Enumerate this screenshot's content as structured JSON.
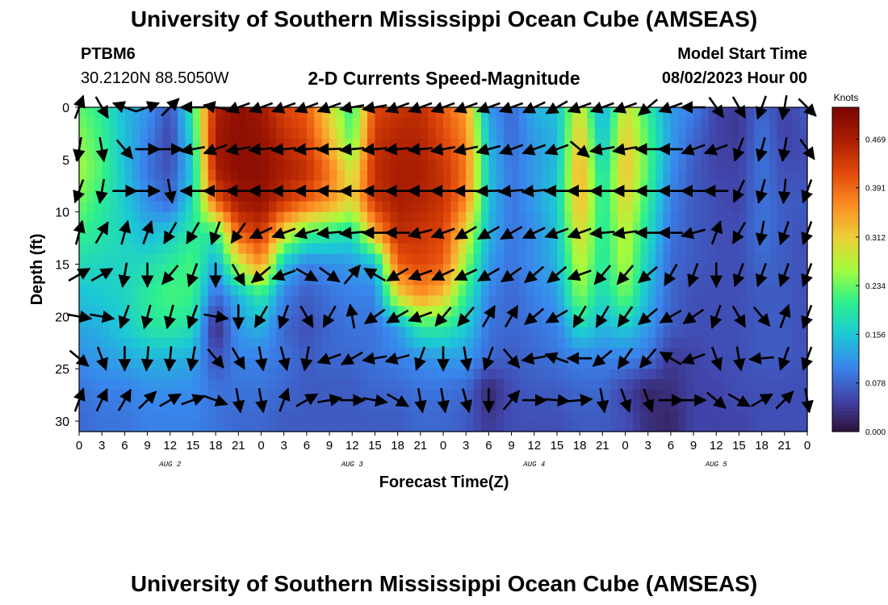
{
  "header": {
    "title": "University of Southern Mississippi Ocean Cube (AMSEAS)",
    "station": "PTBM6",
    "coords": "30.2120N  88.5050W",
    "subtitle": "2-D Currents Speed-Magnitude",
    "model_start_label": "Model Start Time",
    "model_start_value": "08/02/2023 Hour 00"
  },
  "footer": {
    "title": "University of Southern Mississippi Ocean Cube (AMSEAS)"
  },
  "chart_data": {
    "type": "heatmap",
    "title": "2-D Currents Speed-Magnitude",
    "xlabel": "Forecast Time(Z)",
    "ylabel": "Depth (ft)",
    "x_ticks": [
      "0",
      "3",
      "6",
      "9",
      "12",
      "15",
      "18",
      "21",
      "0",
      "3",
      "6",
      "9",
      "12",
      "15",
      "18",
      "21",
      "0",
      "3",
      "6",
      "9",
      "12",
      "15",
      "18",
      "21",
      "0",
      "3",
      "6",
      "9",
      "12",
      "15",
      "18",
      "21",
      "0"
    ],
    "day_labels": [
      "AUG 2",
      "AUG 3",
      "AUG 4",
      "AUG 5"
    ],
    "y_ticks": [
      0,
      5,
      10,
      15,
      20,
      25,
      30
    ],
    "ylim": [
      0,
      31
    ],
    "x_hours": [
      0,
      96
    ],
    "colorbar": {
      "title": "Knots",
      "ticks": [
        "0.000",
        "0.078",
        "0.156",
        "0.234",
        "0.312",
        "0.391",
        "0.469"
      ],
      "range": [
        0,
        0.52
      ]
    },
    "hours": [
      0,
      3,
      6,
      9,
      12,
      15,
      18,
      21,
      24,
      27,
      30,
      33,
      36,
      39,
      42,
      45,
      48,
      51,
      54,
      57,
      60,
      63,
      66,
      69,
      72,
      75,
      78,
      81,
      84,
      87,
      90,
      93,
      96
    ],
    "depths": [
      0,
      3,
      6,
      9,
      12,
      15,
      18,
      21,
      24,
      27,
      30
    ],
    "speed": [
      [
        0.23,
        0.2,
        0.14,
        0.12,
        0.06,
        0.2,
        0.46,
        0.5,
        0.48,
        0.42,
        0.4,
        0.3,
        0.2,
        0.42,
        0.44,
        0.45,
        0.4,
        0.35,
        0.12,
        0.08,
        0.14,
        0.15,
        0.3,
        0.12,
        0.3,
        0.2,
        0.12,
        0.1,
        0.05,
        0.04,
        0.08,
        0.05,
        0.07
      ],
      [
        0.25,
        0.21,
        0.15,
        0.1,
        0.05,
        0.18,
        0.48,
        0.5,
        0.49,
        0.45,
        0.42,
        0.33,
        0.22,
        0.44,
        0.46,
        0.46,
        0.42,
        0.37,
        0.14,
        0.08,
        0.12,
        0.14,
        0.33,
        0.14,
        0.32,
        0.22,
        0.12,
        0.08,
        0.05,
        0.04,
        0.09,
        0.05,
        0.06
      ],
      [
        0.26,
        0.22,
        0.15,
        0.09,
        0.06,
        0.16,
        0.47,
        0.5,
        0.5,
        0.47,
        0.45,
        0.38,
        0.28,
        0.45,
        0.47,
        0.47,
        0.44,
        0.38,
        0.15,
        0.09,
        0.12,
        0.15,
        0.35,
        0.17,
        0.33,
        0.22,
        0.11,
        0.07,
        0.05,
        0.05,
        0.09,
        0.06,
        0.06
      ],
      [
        0.24,
        0.2,
        0.16,
        0.11,
        0.08,
        0.18,
        0.4,
        0.48,
        0.49,
        0.44,
        0.4,
        0.36,
        0.3,
        0.44,
        0.47,
        0.46,
        0.44,
        0.37,
        0.15,
        0.09,
        0.12,
        0.16,
        0.34,
        0.19,
        0.31,
        0.2,
        0.1,
        0.07,
        0.06,
        0.05,
        0.09,
        0.07,
        0.07
      ],
      [
        0.21,
        0.19,
        0.17,
        0.14,
        0.16,
        0.2,
        0.2,
        0.4,
        0.44,
        0.3,
        0.22,
        0.2,
        0.18,
        0.34,
        0.45,
        0.44,
        0.42,
        0.3,
        0.14,
        0.09,
        0.11,
        0.15,
        0.31,
        0.19,
        0.28,
        0.18,
        0.09,
        0.07,
        0.06,
        0.06,
        0.09,
        0.07,
        0.06
      ],
      [
        0.18,
        0.17,
        0.17,
        0.18,
        0.2,
        0.22,
        0.13,
        0.28,
        0.36,
        0.15,
        0.1,
        0.11,
        0.12,
        0.14,
        0.4,
        0.42,
        0.4,
        0.25,
        0.12,
        0.09,
        0.11,
        0.14,
        0.28,
        0.19,
        0.27,
        0.16,
        0.08,
        0.07,
        0.06,
        0.06,
        0.08,
        0.07,
        0.06
      ],
      [
        0.15,
        0.16,
        0.17,
        0.2,
        0.22,
        0.21,
        0.08,
        0.14,
        0.2,
        0.1,
        0.07,
        0.09,
        0.1,
        0.1,
        0.3,
        0.36,
        0.32,
        0.2,
        0.1,
        0.08,
        0.1,
        0.12,
        0.25,
        0.17,
        0.24,
        0.14,
        0.08,
        0.06,
        0.06,
        0.06,
        0.07,
        0.07,
        0.06
      ],
      [
        0.13,
        0.14,
        0.16,
        0.19,
        0.2,
        0.18,
        0.02,
        0.12,
        0.14,
        0.08,
        0.06,
        0.08,
        0.09,
        0.09,
        0.12,
        0.2,
        0.2,
        0.16,
        0.09,
        0.08,
        0.09,
        0.1,
        0.18,
        0.14,
        0.16,
        0.12,
        0.07,
        0.06,
        0.06,
        0.06,
        0.07,
        0.07,
        0.06
      ],
      [
        0.11,
        0.12,
        0.13,
        0.14,
        0.14,
        0.13,
        0.06,
        0.1,
        0.1,
        0.09,
        0.07,
        0.08,
        0.08,
        0.09,
        0.1,
        0.11,
        0.12,
        0.12,
        0.08,
        0.07,
        0.08,
        0.09,
        0.1,
        0.1,
        0.1,
        0.09,
        0.04,
        0.05,
        0.06,
        0.06,
        0.07,
        0.07,
        0.06
      ],
      [
        0.09,
        0.1,
        0.1,
        0.11,
        0.11,
        0.11,
        0.09,
        0.09,
        0.09,
        0.08,
        0.07,
        0.07,
        0.07,
        0.08,
        0.08,
        0.09,
        0.09,
        0.08,
        0.02,
        0.06,
        0.07,
        0.07,
        0.08,
        0.08,
        0.05,
        0.02,
        0.03,
        0.05,
        0.05,
        0.06,
        0.06,
        0.06,
        0.06
      ],
      [
        0.08,
        0.09,
        0.09,
        0.1,
        0.1,
        0.1,
        0.09,
        0.08,
        0.08,
        0.07,
        0.07,
        0.07,
        0.07,
        0.07,
        0.07,
        0.08,
        0.08,
        0.07,
        0.04,
        0.06,
        0.06,
        0.06,
        0.07,
        0.07,
        0.06,
        0.03,
        0.02,
        0.05,
        0.05,
        0.05,
        0.06,
        0.06,
        0.06
      ]
    ],
    "vector_hours": [
      0,
      3,
      6,
      9,
      12,
      15,
      18,
      21,
      24,
      27,
      30,
      33,
      36,
      39,
      42,
      45,
      48,
      51,
      54,
      57,
      60,
      63,
      66,
      69,
      72,
      75,
      78,
      81,
      84,
      87,
      90,
      93,
      96
    ],
    "vector_depths": [
      0,
      4,
      8,
      12,
      16,
      20,
      24,
      28
    ],
    "vector_dir": [
      [
        20,
        150,
        290,
        70,
        45,
        270,
        280,
        250,
        250,
        250,
        250,
        250,
        260,
        260,
        250,
        250,
        250,
        250,
        250,
        250,
        245,
        240,
        250,
        250,
        250,
        230,
        250,
        270,
        145,
        150,
        200,
        190,
        135
      ],
      [
        190,
        170,
        140,
        90,
        90,
        260,
        250,
        260,
        265,
        265,
        265,
        268,
        265,
        265,
        265,
        265,
        260,
        258,
        255,
        250,
        250,
        250,
        130,
        260,
        260,
        270,
        270,
        250,
        250,
        200,
        195,
        190,
        145
      ],
      [
        200,
        190,
        90,
        90,
        170,
        270,
        270,
        270,
        270,
        270,
        270,
        272,
        270,
        270,
        270,
        270,
        270,
        270,
        268,
        265,
        265,
        270,
        270,
        270,
        270,
        270,
        270,
        270,
        270,
        205,
        195,
        185,
        200
      ],
      [
        15,
        30,
        15,
        20,
        210,
        210,
        200,
        215,
        245,
        250,
        255,
        265,
        265,
        270,
        270,
        255,
        250,
        240,
        240,
        240,
        245,
        250,
        250,
        265,
        262,
        270,
        270,
        255,
        20,
        210,
        190,
        200,
        200
      ],
      [
        60,
        60,
        190,
        180,
        220,
        200,
        180,
        150,
        230,
        250,
        120,
        125,
        40,
        300,
        240,
        250,
        245,
        245,
        240,
        235,
        230,
        230,
        250,
        220,
        220,
        230,
        210,
        200,
        180,
        200,
        200,
        200,
        200
      ],
      [
        100,
        100,
        200,
        195,
        195,
        200,
        100,
        180,
        210,
        200,
        150,
        210,
        350,
        235,
        240,
        250,
        220,
        220,
        30,
        30,
        230,
        240,
        210,
        210,
        215,
        230,
        240,
        235,
        200,
        150,
        140,
        20,
        200
      ],
      [
        130,
        160,
        180,
        185,
        185,
        190,
        140,
        150,
        170,
        165,
        190,
        250,
        240,
        260,
        255,
        200,
        180,
        170,
        200,
        140,
        260,
        290,
        270,
        230,
        215,
        220,
        300,
        250,
        160,
        170,
        265,
        200,
        200
      ],
      [
        20,
        25,
        30,
        45,
        60,
        70,
        110,
        170,
        170,
        20,
        60,
        80,
        90,
        100,
        120,
        170,
        170,
        165,
        180,
        40,
        90,
        95,
        85,
        170,
        160,
        160,
        90,
        90,
        130,
        120,
        60,
        45,
        170
      ]
    ]
  }
}
